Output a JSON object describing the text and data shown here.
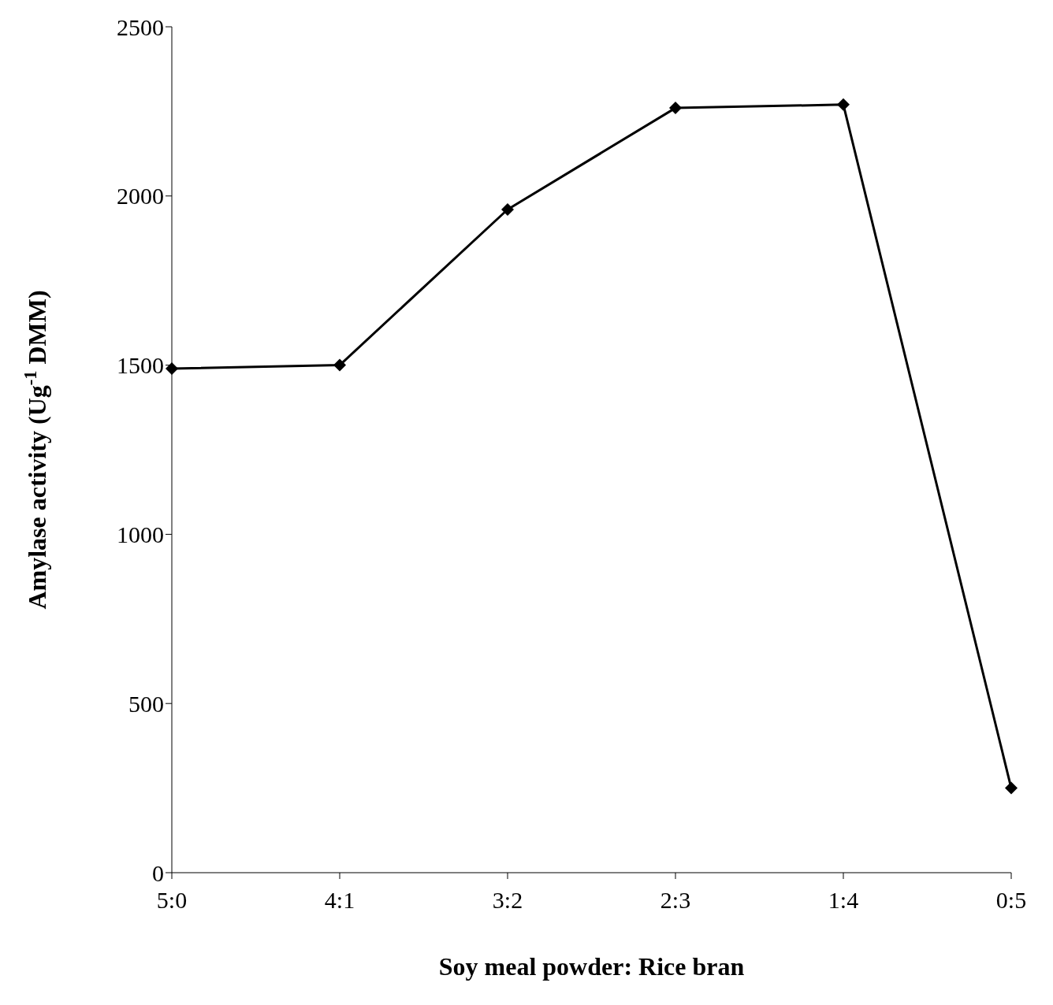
{
  "chart_data": {
    "type": "line",
    "xlabel": "Soy meal powder: Rice bran",
    "ylabel": "Amylase activity (Ug$^{-1}$ DMM)",
    "categories": [
      "5:0",
      "4:1",
      "3:2",
      "2:3",
      "1:4",
      "0:5"
    ],
    "series": [
      {
        "color": "#000000",
        "values": [
          1490,
          1500,
          1960,
          2260,
          2270,
          250
        ]
      }
    ],
    "ylim": [
      0,
      2500
    ],
    "yticks": [
      0,
      500,
      1000,
      1500,
      2000,
      2500
    ],
    "grid": false,
    "legend": false,
    "marker": "diamond",
    "line_style": "solid"
  }
}
